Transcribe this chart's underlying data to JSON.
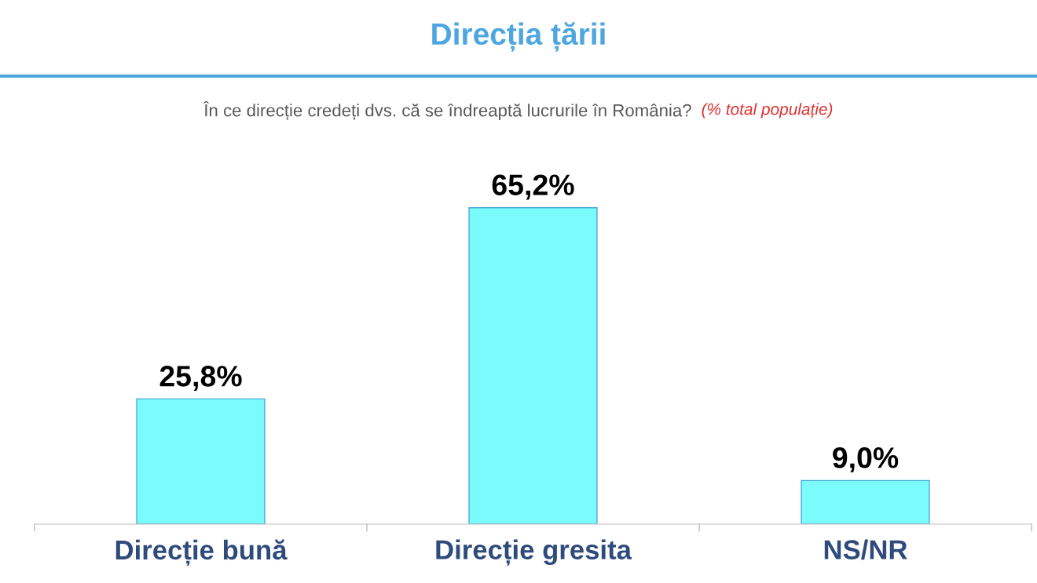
{
  "chart_data": {
    "type": "bar",
    "title": "Direcția țării",
    "subtitle": "În ce direcție credeți dvs. că se îndreaptă lucrurile în România?",
    "annotations": [
      "(% total populație)"
    ],
    "categories": [
      "Direcție bună",
      "Direcție gresita",
      "NS/NR"
    ],
    "values": [
      25.8,
      65.2,
      9.0
    ],
    "value_labels": [
      "25,8%",
      "65,2%",
      "9,0%"
    ],
    "color": "#7afcfc",
    "grid": false,
    "legend": false
  }
}
